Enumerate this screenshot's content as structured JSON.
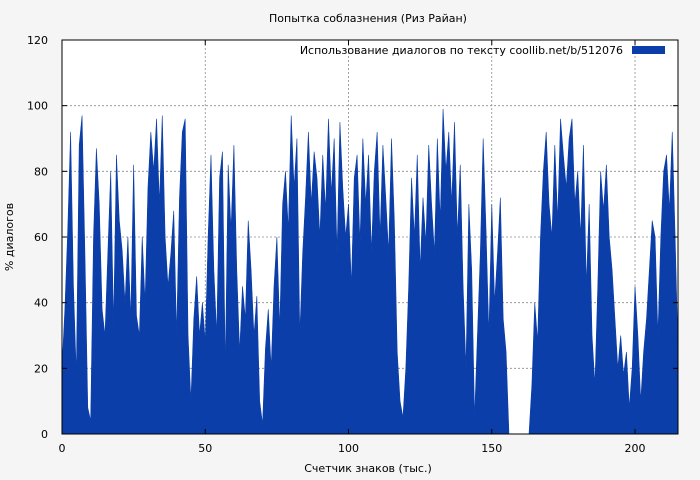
{
  "chart_data": {
    "type": "area",
    "title": "Попытка соблазнения  (Риз Райан)",
    "xlabel": "Счетчик знаков (тыс.)",
    "ylabel": "% диалогов",
    "xlim": [
      0,
      215
    ],
    "ylim": [
      0,
      120
    ],
    "x_ticks": [
      "0",
      "50",
      "100",
      "150",
      "200"
    ],
    "x_tick_values": [
      0,
      50,
      100,
      150,
      200
    ],
    "y_ticks": [
      "0",
      "20",
      "40",
      "60",
      "80",
      "100",
      "120"
    ],
    "y_tick_values": [
      0,
      20,
      40,
      60,
      80,
      100,
      120
    ],
    "grid": true,
    "legend_position": "top-right",
    "series": [
      {
        "name": "Использование диалогов по тексту  coollib.net/b/512076",
        "color": "#0b3ea8",
        "points": [
          [
            0,
            20
          ],
          [
            1,
            38
          ],
          [
            2,
            62
          ],
          [
            3,
            92
          ],
          [
            4,
            45
          ],
          [
            5,
            18
          ],
          [
            6,
            88
          ],
          [
            7,
            97
          ],
          [
            8,
            55
          ],
          [
            9,
            8
          ],
          [
            10,
            4
          ],
          [
            11,
            60
          ],
          [
            12,
            87
          ],
          [
            13,
            70
          ],
          [
            14,
            38
          ],
          [
            15,
            30
          ],
          [
            16,
            55
          ],
          [
            17,
            80
          ],
          [
            18,
            33
          ],
          [
            19,
            85
          ],
          [
            20,
            65
          ],
          [
            21,
            56
          ],
          [
            22,
            40
          ],
          [
            23,
            60
          ],
          [
            24,
            35
          ],
          [
            25,
            82
          ],
          [
            26,
            36
          ],
          [
            27,
            30
          ],
          [
            28,
            60
          ],
          [
            29,
            40
          ],
          [
            30,
            75
          ],
          [
            31,
            92
          ],
          [
            32,
            80
          ],
          [
            33,
            96
          ],
          [
            34,
            70
          ],
          [
            35,
            97
          ],
          [
            36,
            60
          ],
          [
            37,
            45
          ],
          [
            38,
            55
          ],
          [
            39,
            68
          ],
          [
            40,
            30
          ],
          [
            41,
            72
          ],
          [
            42,
            92
          ],
          [
            43,
            96
          ],
          [
            44,
            30
          ],
          [
            45,
            10
          ],
          [
            46,
            35
          ],
          [
            47,
            48
          ],
          [
            48,
            30
          ],
          [
            49,
            40
          ],
          [
            50,
            28
          ],
          [
            51,
            60
          ],
          [
            52,
            85
          ],
          [
            53,
            50
          ],
          [
            54,
            30
          ],
          [
            55,
            78
          ],
          [
            56,
            86
          ],
          [
            57,
            20
          ],
          [
            58,
            82
          ],
          [
            59,
            62
          ],
          [
            60,
            88
          ],
          [
            61,
            50
          ],
          [
            62,
            25
          ],
          [
            63,
            45
          ],
          [
            64,
            35
          ],
          [
            65,
            65
          ],
          [
            66,
            50
          ],
          [
            67,
            30
          ],
          [
            68,
            42
          ],
          [
            69,
            10
          ],
          [
            70,
            3
          ],
          [
            71,
            26
          ],
          [
            72,
            38
          ],
          [
            73,
            20
          ],
          [
            74,
            45
          ],
          [
            75,
            60
          ],
          [
            76,
            32
          ],
          [
            77,
            70
          ],
          [
            78,
            80
          ],
          [
            79,
            62
          ],
          [
            80,
            97
          ],
          [
            81,
            75
          ],
          [
            82,
            90
          ],
          [
            83,
            30
          ],
          [
            84,
            55
          ],
          [
            85,
            72
          ],
          [
            86,
            92
          ],
          [
            87,
            70
          ],
          [
            88,
            86
          ],
          [
            89,
            78
          ],
          [
            90,
            60
          ],
          [
            91,
            85
          ],
          [
            92,
            68
          ],
          [
            93,
            96
          ],
          [
            94,
            73
          ],
          [
            95,
            90
          ],
          [
            96,
            55
          ],
          [
            97,
            95
          ],
          [
            98,
            75
          ],
          [
            99,
            60
          ],
          [
            100,
            70
          ],
          [
            101,
            45
          ],
          [
            102,
            78
          ],
          [
            103,
            85
          ],
          [
            104,
            58
          ],
          [
            105,
            90
          ],
          [
            106,
            70
          ],
          [
            107,
            85
          ],
          [
            108,
            55
          ],
          [
            109,
            80
          ],
          [
            110,
            92
          ],
          [
            111,
            60
          ],
          [
            112,
            88
          ],
          [
            113,
            72
          ],
          [
            114,
            55
          ],
          [
            115,
            90
          ],
          [
            116,
            65
          ],
          [
            117,
            25
          ],
          [
            118,
            10
          ],
          [
            119,
            5
          ],
          [
            120,
            20
          ],
          [
            121,
            45
          ],
          [
            122,
            78
          ],
          [
            123,
            60
          ],
          [
            124,
            85
          ],
          [
            125,
            50
          ],
          [
            126,
            72
          ],
          [
            127,
            58
          ],
          [
            128,
            88
          ],
          [
            129,
            70
          ],
          [
            130,
            55
          ],
          [
            131,
            90
          ],
          [
            132,
            65
          ],
          [
            133,
            99
          ],
          [
            134,
            80
          ],
          [
            135,
            92
          ],
          [
            136,
            70
          ],
          [
            137,
            95
          ],
          [
            138,
            60
          ],
          [
            139,
            82
          ],
          [
            140,
            45
          ],
          [
            141,
            20
          ],
          [
            142,
            70
          ],
          [
            143,
            50
          ],
          [
            144,
            5
          ],
          [
            145,
            30
          ],
          [
            146,
            55
          ],
          [
            147,
            90
          ],
          [
            148,
            62
          ],
          [
            149,
            30
          ],
          [
            150,
            70
          ],
          [
            151,
            40
          ],
          [
            152,
            55
          ],
          [
            153,
            72
          ],
          [
            154,
            35
          ],
          [
            155,
            25
          ],
          [
            156,
            0
          ],
          [
            157,
            0
          ],
          [
            158,
            0
          ],
          [
            159,
            0
          ],
          [
            160,
            0
          ],
          [
            161,
            0
          ],
          [
            162,
            0
          ],
          [
            163,
            0
          ],
          [
            164,
            15
          ],
          [
            165,
            40
          ],
          [
            166,
            28
          ],
          [
            167,
            60
          ],
          [
            168,
            80
          ],
          [
            169,
            92
          ],
          [
            170,
            70
          ],
          [
            171,
            60
          ],
          [
            172,
            88
          ],
          [
            173,
            65
          ],
          [
            174,
            96
          ],
          [
            175,
            85
          ],
          [
            176,
            75
          ],
          [
            177,
            90
          ],
          [
            178,
            96
          ],
          [
            179,
            70
          ],
          [
            180,
            80
          ],
          [
            181,
            60
          ],
          [
            182,
            88
          ],
          [
            183,
            45
          ],
          [
            184,
            70
          ],
          [
            185,
            30
          ],
          [
            186,
            15
          ],
          [
            187,
            45
          ],
          [
            188,
            80
          ],
          [
            189,
            68
          ],
          [
            190,
            82
          ],
          [
            191,
            60
          ],
          [
            192,
            50
          ],
          [
            193,
            35
          ],
          [
            194,
            20
          ],
          [
            195,
            30
          ],
          [
            196,
            18
          ],
          [
            197,
            25
          ],
          [
            198,
            8
          ],
          [
            199,
            20
          ],
          [
            200,
            45
          ],
          [
            201,
            30
          ],
          [
            202,
            10
          ],
          [
            203,
            25
          ],
          [
            204,
            35
          ],
          [
            205,
            50
          ],
          [
            206,
            65
          ],
          [
            207,
            60
          ],
          [
            208,
            30
          ],
          [
            209,
            60
          ],
          [
            210,
            80
          ],
          [
            211,
            85
          ],
          [
            212,
            68
          ],
          [
            213,
            92
          ],
          [
            214,
            60
          ],
          [
            215,
            25
          ]
        ]
      }
    ]
  }
}
